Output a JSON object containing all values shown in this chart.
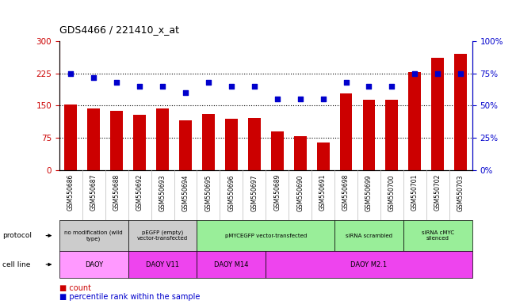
{
  "title": "GDS4466 / 221410_x_at",
  "samples": [
    "GSM550686",
    "GSM550687",
    "GSM550688",
    "GSM550692",
    "GSM550693",
    "GSM550694",
    "GSM550695",
    "GSM550696",
    "GSM550697",
    "GSM550689",
    "GSM550690",
    "GSM550691",
    "GSM550698",
    "GSM550699",
    "GSM550700",
    "GSM550701",
    "GSM550702",
    "GSM550703"
  ],
  "counts": [
    152,
    143,
    138,
    128,
    143,
    115,
    130,
    120,
    121,
    90,
    80,
    65,
    178,
    163,
    163,
    228,
    262,
    270
  ],
  "percentiles": [
    75,
    72,
    68,
    65,
    65,
    60,
    68,
    65,
    65,
    55,
    55,
    55,
    68,
    65,
    65,
    75,
    75,
    75
  ],
  "bar_color": "#cc0000",
  "dot_color": "#0000cc",
  "ylim_left": [
    0,
    300
  ],
  "ylim_right": [
    0,
    100
  ],
  "yticks_left": [
    0,
    75,
    150,
    225,
    300
  ],
  "yticks_right": [
    0,
    25,
    50,
    75,
    100
  ],
  "protocol_groups": [
    {
      "label": "no modification (wild\ntype)",
      "start": 0,
      "end": 3,
      "color": "#cccccc"
    },
    {
      "label": "pEGFP (empty)\nvector-transfected",
      "start": 3,
      "end": 6,
      "color": "#cccccc"
    },
    {
      "label": "pMYCEGFP vector-transfected",
      "start": 6,
      "end": 12,
      "color": "#99ee99"
    },
    {
      "label": "siRNA scrambled",
      "start": 12,
      "end": 15,
      "color": "#99ee99"
    },
    {
      "label": "siRNA cMYC\nsilenced",
      "start": 15,
      "end": 18,
      "color": "#99ee99"
    }
  ],
  "cellline_groups": [
    {
      "label": "DAOY",
      "start": 0,
      "end": 3,
      "color": "#ff99ff"
    },
    {
      "label": "DAOY V11",
      "start": 3,
      "end": 6,
      "color": "#ee44ee"
    },
    {
      "label": "DAOY M14",
      "start": 6,
      "end": 9,
      "color": "#ee44ee"
    },
    {
      "label": "DAOY M2.1",
      "start": 9,
      "end": 18,
      "color": "#ee44ee"
    }
  ],
  "bg_color": "#ffffff"
}
